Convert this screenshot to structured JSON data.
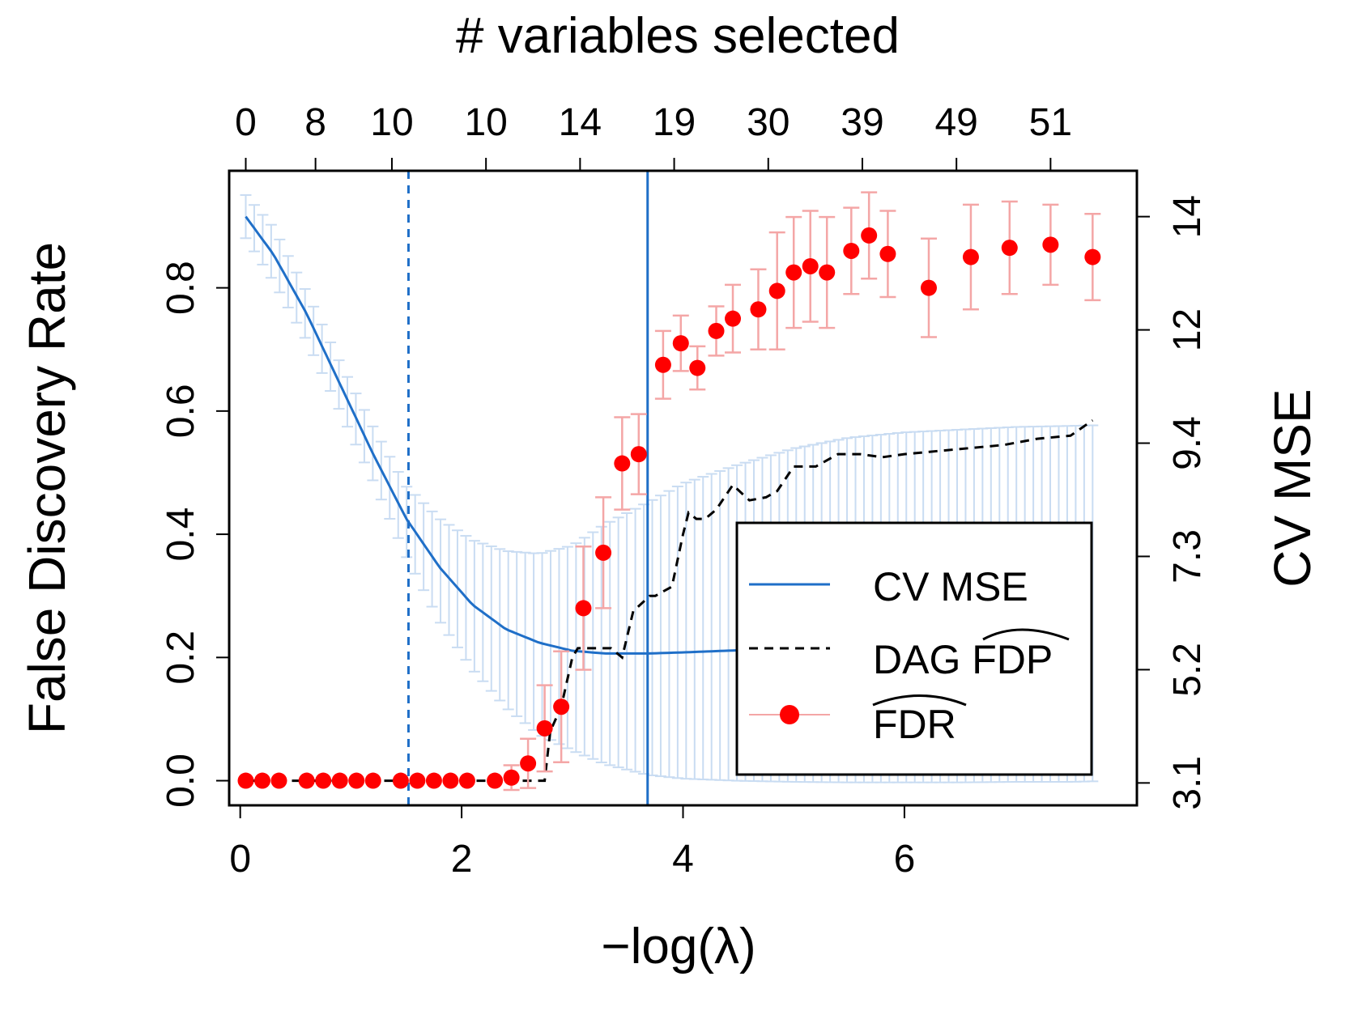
{
  "chart_data": {
    "type": "scatter",
    "title": "",
    "top_axis_label": "# variables selected",
    "xlabel": "−log(λ)",
    "ylabel": "False Discovery Rate",
    "y2label": "CV MSE",
    "xlim": [
      -0.1,
      8.1
    ],
    "ylim": [
      -0.04,
      0.99
    ],
    "y2lim": [
      2.685,
      14.45
    ],
    "x_ticks": [
      "0",
      "2",
      "4",
      "6"
    ],
    "x_tick_values": [
      0,
      2,
      4,
      6
    ],
    "y_ticks": [
      "0.0",
      "0.2",
      "0.4",
      "0.6",
      "0.8"
    ],
    "y_tick_values": [
      0,
      0.2,
      0.4,
      0.6,
      0.8
    ],
    "y2_ticks": [
      "3.1",
      "5.2",
      "7.3",
      "9.4",
      "12",
      "14"
    ],
    "y2_tick_values": [
      3.1,
      5.2,
      7.3,
      9.4,
      11.5,
      13.6
    ],
    "top_ticks": [
      "0",
      "8",
      "10",
      "10",
      "14",
      "19",
      "30",
      "39",
      "49",
      "51"
    ],
    "top_tick_values": [
      0.05,
      0.68,
      1.37,
      2.22,
      3.07,
      3.92,
      4.77,
      5.62,
      6.47,
      7.32
    ],
    "vlines": [
      {
        "x": 1.52,
        "style": "dashed",
        "color": "#1f6fc8"
      },
      {
        "x": 3.68,
        "style": "solid",
        "color": "#1f6fc8"
      }
    ],
    "legend": {
      "placement": "bottom-right",
      "entries": [
        {
          "label": "CV MSE",
          "marker": "line",
          "color": "#1f6fc8"
        },
        {
          "label": "DAG FDP",
          "hat": "FDP",
          "marker": "dashed",
          "color": "#000000"
        },
        {
          "label": "FDR",
          "hat": "FDR",
          "marker": "point",
          "color": "#ff0000"
        }
      ]
    },
    "series": [
      {
        "name": "CV MSE",
        "axis": "right",
        "color": "#1f6fc8",
        "error_color": "#c9dcf2",
        "x": [
          0.05,
          0.3,
          0.6,
          0.9,
          1.2,
          1.5,
          1.8,
          2.1,
          2.4,
          2.7,
          3.0,
          3.3,
          3.68,
          4.0,
          4.5,
          5.0,
          5.5,
          6.0,
          6.5,
          7.0,
          7.5,
          7.7
        ],
        "values": [
          13.6,
          12.9,
          11.8,
          10.5,
          9.2,
          8.0,
          7.1,
          6.4,
          5.95,
          5.7,
          5.55,
          5.5,
          5.5,
          5.52,
          5.56,
          5.6,
          5.65,
          5.72,
          5.78,
          5.82,
          5.85,
          5.86
        ],
        "upper": [
          14.0,
          13.4,
          12.2,
          10.9,
          9.7,
          8.6,
          8.0,
          7.6,
          7.4,
          7.35,
          7.5,
          7.9,
          8.3,
          8.65,
          9.0,
          9.3,
          9.5,
          9.6,
          9.65,
          9.7,
          9.72,
          9.73
        ],
        "lower": [
          13.2,
          12.4,
          11.3,
          10.0,
          8.7,
          7.3,
          6.1,
          5.2,
          4.5,
          4.0,
          3.7,
          3.45,
          3.25,
          3.18,
          3.14,
          3.12,
          3.11,
          3.11,
          3.11,
          3.12,
          3.12,
          3.13
        ]
      },
      {
        "name": "DAG FDP",
        "axis": "left",
        "color": "#000000",
        "style": "dashed",
        "x": [
          0.05,
          2.5,
          2.75,
          2.8,
          2.9,
          3.0,
          3.05,
          3.35,
          3.45,
          3.55,
          3.7,
          3.75,
          3.9,
          4.0,
          4.05,
          4.12,
          4.2,
          4.3,
          4.45,
          4.6,
          4.75,
          4.85,
          5.0,
          5.2,
          5.4,
          5.6,
          5.8,
          6.0,
          6.3,
          6.6,
          6.9,
          7.2,
          7.5,
          7.7
        ],
        "values": [
          0.0,
          0.0,
          0.0,
          0.08,
          0.12,
          0.2,
          0.215,
          0.215,
          0.2,
          0.275,
          0.3,
          0.3,
          0.315,
          0.4,
          0.435,
          0.425,
          0.425,
          0.44,
          0.48,
          0.455,
          0.46,
          0.47,
          0.51,
          0.51,
          0.53,
          0.53,
          0.525,
          0.53,
          0.535,
          0.54,
          0.545,
          0.555,
          0.56,
          0.585
        ]
      },
      {
        "name": "FDR",
        "axis": "left",
        "color": "#ff0000",
        "error_color": "#f4a6a6",
        "x": [
          0.05,
          0.2,
          0.35,
          0.6,
          0.75,
          0.9,
          1.05,
          1.2,
          1.45,
          1.6,
          1.75,
          1.9,
          2.05,
          2.3,
          2.45,
          2.6,
          2.75,
          2.9,
          3.1,
          3.28,
          3.45,
          3.6,
          3.82,
          3.98,
          4.13,
          4.3,
          4.45,
          4.68,
          4.85,
          5.0,
          5.15,
          5.3,
          5.52,
          5.68,
          5.85,
          6.22,
          6.6,
          6.95,
          7.32,
          7.7
        ],
        "values": [
          0.0,
          0.0,
          0.0,
          0.0,
          0.0,
          0.0,
          0.0,
          0.0,
          0.0,
          0.0,
          0.0,
          0.0,
          0.0,
          0.0,
          0.005,
          0.028,
          0.085,
          0.12,
          0.28,
          0.37,
          0.515,
          0.53,
          0.675,
          0.71,
          0.67,
          0.73,
          0.75,
          0.765,
          0.795,
          0.825,
          0.835,
          0.825,
          0.86,
          0.885,
          0.855,
          0.8,
          0.85,
          0.865,
          0.87,
          0.85
        ],
        "err": [
          0,
          0,
          0,
          0,
          0,
          0,
          0,
          0,
          0,
          0,
          0,
          0,
          0,
          0,
          0.02,
          0.04,
          0.07,
          0.09,
          0.1,
          0.09,
          0.075,
          0.065,
          0.055,
          0.045,
          0.035,
          0.04,
          0.055,
          0.065,
          0.095,
          0.09,
          0.09,
          0.09,
          0.07,
          0.07,
          0.07,
          0.08,
          0.085,
          0.075,
          0.065,
          0.07
        ]
      }
    ]
  }
}
